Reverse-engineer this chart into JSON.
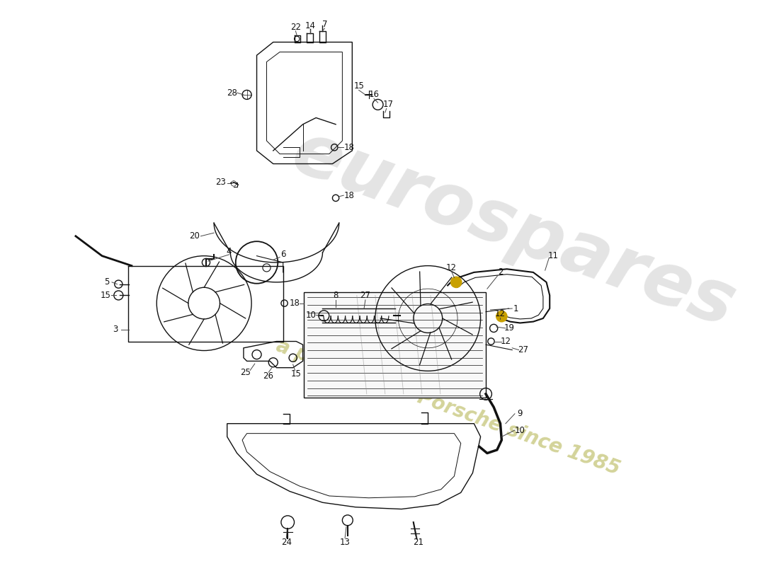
{
  "bg_color": "#ffffff",
  "line_color": "#111111",
  "label_color": "#111111",
  "watermark1": "eurospares",
  "watermark2": "a passion for Porsche since 1985",
  "wm_color1": "#bbbbbb",
  "wm_color2": "#cccc88",
  "swoosh_color": "#e8e8e8",
  "gold_color": "#c8a000",
  "fig_w": 11.0,
  "fig_h": 8.0,
  "dpi": 100
}
